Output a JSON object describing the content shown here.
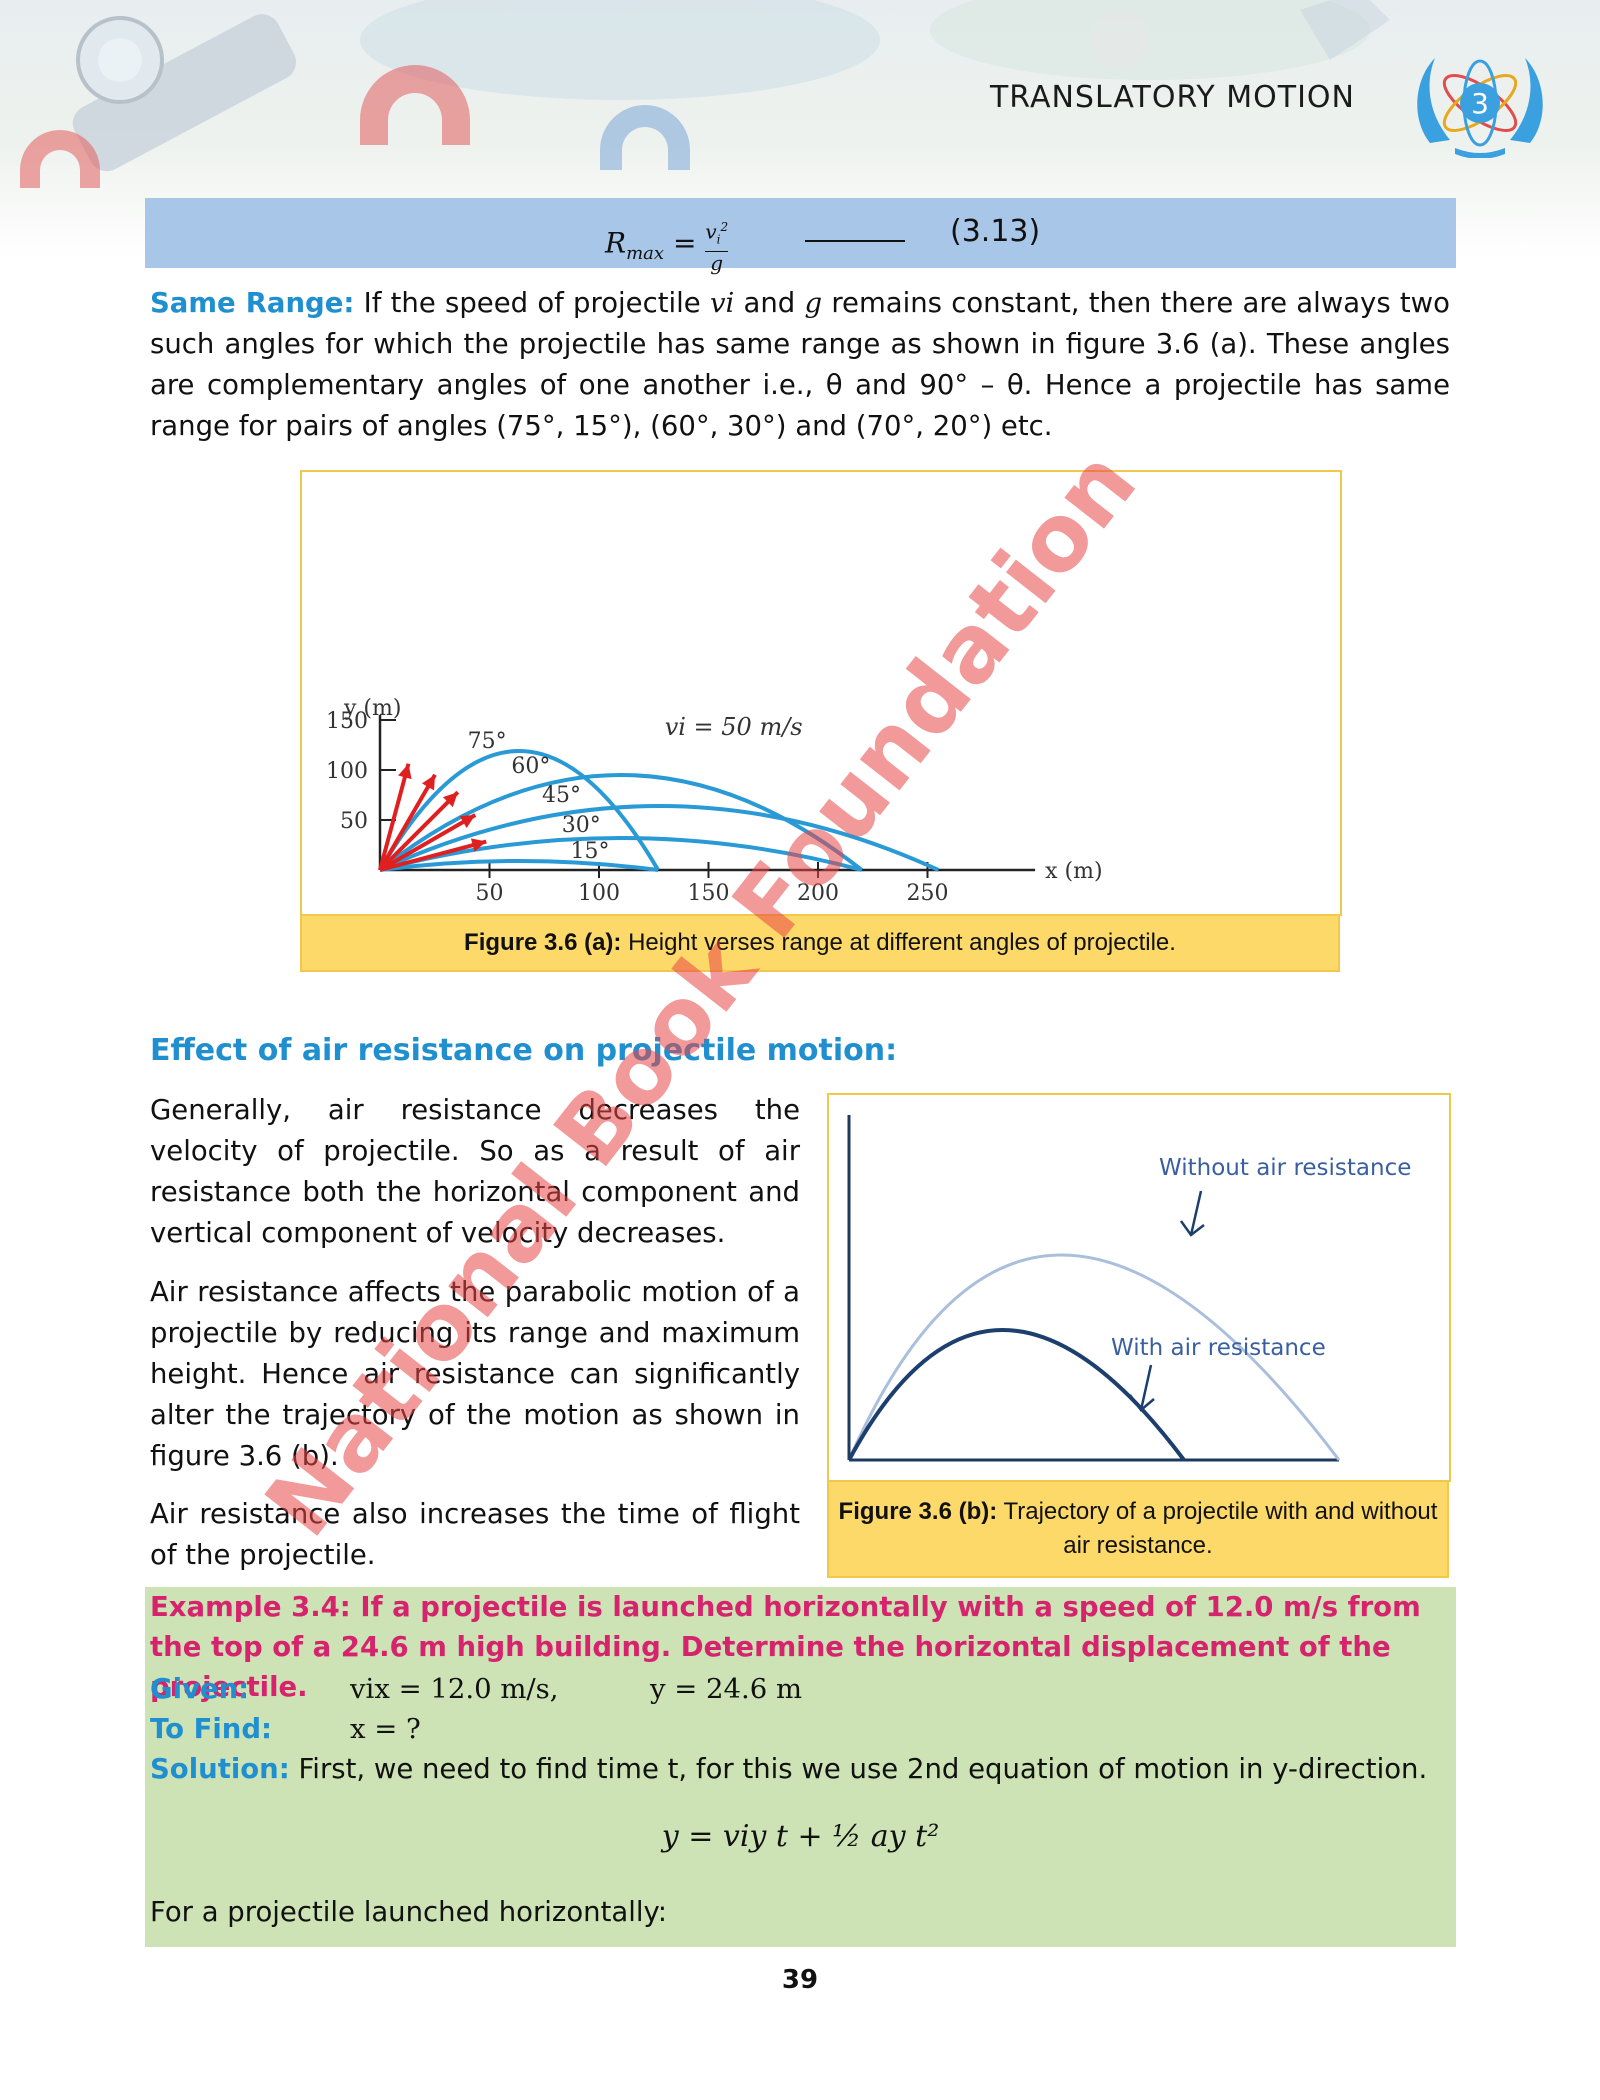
{
  "header": {
    "chapter_title": "TRANSLATORY MOTION",
    "chapter_number": "3",
    "badge_color": "#3ba0e0"
  },
  "formula": {
    "lhs": "Rmax = vi²/g",
    "blank": "______",
    "equation_number": "(3.13)"
  },
  "same_range": {
    "heading": "Same Range:",
    "text_1": " If the speed of projectile ",
    "vi": "vi",
    "text_2": " and ",
    "g": "g",
    "text_3": " remains constant, then there are always two such angles for which the projectile has same range as shown in figure 3.6 (a). These angles are complementary angles of one another i.e., θ and 90° – θ. Hence a projectile has same range for pairs of angles (75°, 15°), (60°, 30°) and (70°, 20°) etc."
  },
  "figure_a": {
    "caption_label": "Figure 3.6 (a):",
    "caption_text": " Height verses range at different angles of projectile."
  },
  "chart_data": {
    "type": "line",
    "xlabel": "x (m)",
    "ylabel": "y (m)",
    "annotation": "vi = 50 m/s",
    "xticks": [
      "50",
      "100",
      "150",
      "200",
      "250"
    ],
    "yticks": [
      "50",
      "100",
      "150"
    ],
    "xlim": [
      0,
      290
    ],
    "ylim": [
      0,
      165
    ],
    "series": [
      {
        "name": "75°",
        "launch_angle_deg": 75,
        "range": 127,
        "max_height": 119
      },
      {
        "name": "60°",
        "launch_angle_deg": 60,
        "range": 220,
        "max_height": 95
      },
      {
        "name": "45°",
        "launch_angle_deg": 45,
        "range": 255,
        "max_height": 64
      },
      {
        "name": "30°",
        "launch_angle_deg": 30,
        "range": 220,
        "max_height": 32
      },
      {
        "name": "15°",
        "launch_angle_deg": 15,
        "range": 127,
        "max_height": 9
      }
    ],
    "curve_color": "#2a9ad6",
    "arrow_color": "#e02020"
  },
  "air_resistance": {
    "heading": "Effect of air resistance on projectile motion:",
    "p1": "Generally, air resistance decreases the velocity of projectile. So as a result of air resistance both the horizontal component and vertical component of velocity decreases.",
    "p2": "Air resistance affects the parabolic motion of a projectile by reducing its range and maximum height. Hence air resistance can significantly alter the trajectory of the motion as shown in figure 3.6 (b).",
    "p3": "Air resistance also increases the time of flight of the projectile."
  },
  "figure_b": {
    "label_without": "Without air resistance",
    "label_with": "With air resistance",
    "caption_label": "Figure 3.6 (b):",
    "caption_text": " Trajectory of a projectile with and without air resistance."
  },
  "example": {
    "title": "Example 3.4: If a projectile is launched horizontally with a speed of 12.0 m/s from the top of a 24.6 m high building. Determine the horizontal displacement of the projectile.",
    "given_label": "Given:",
    "given_v": "vix = 12.0 m/s,",
    "given_y": "y = 24.6 m",
    "find_label": "To Find:",
    "find_value": "x = ?",
    "solution_label": "Solution:",
    "solution_text": " First, we need to find time t, for this we use 2nd equation of motion in y-direction.",
    "equation": "y = viy t + ½ ay t²",
    "last_line": "For a projectile launched horizontally:"
  },
  "watermark": "National Book Foundation",
  "page_number": "39"
}
